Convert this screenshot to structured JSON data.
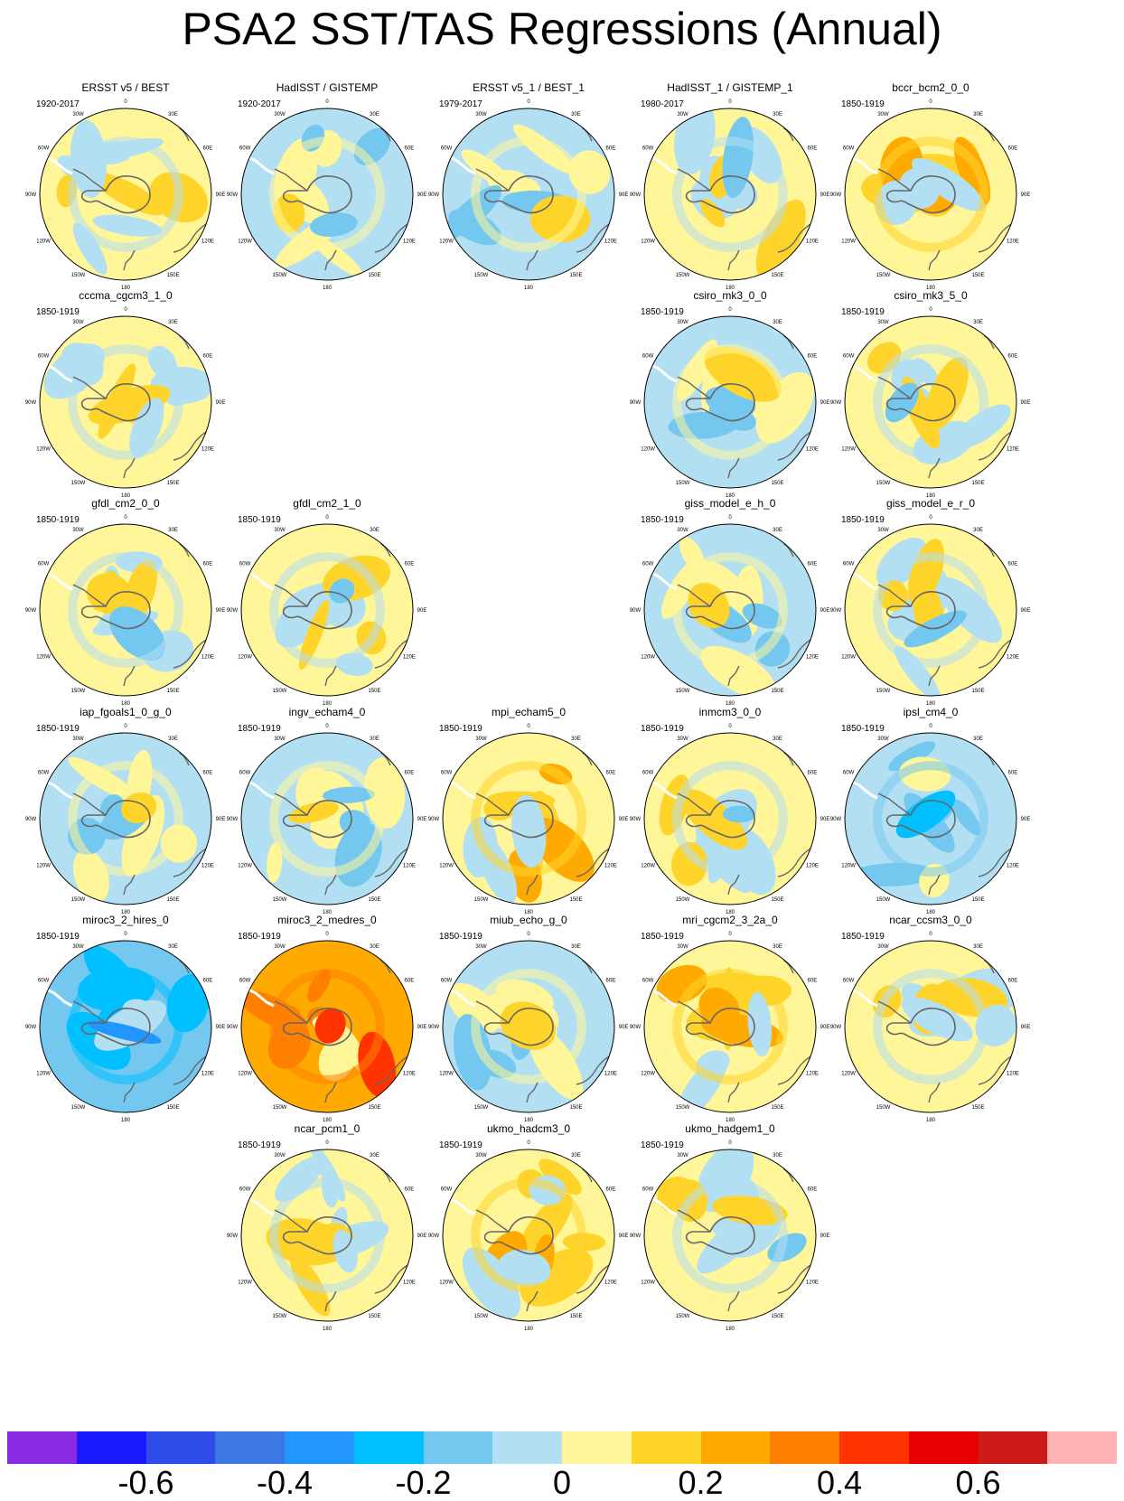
{
  "title": "PSA2 SST/TAS Regressions (Annual)",
  "grid_labels": {
    "top": "0",
    "bottom": "180",
    "upper_left": "30W",
    "upper_right": "30E",
    "left_60": "60W",
    "right_60": "60E",
    "left_90": "90W",
    "right_90": "90E",
    "left_120": "120W",
    "right_120": "120E",
    "lower_left": "150W",
    "lower_right": "150E"
  },
  "panels": [
    {
      "name": "ERSST v5 / BEST",
      "period": "1920-2017",
      "row": 0,
      "col": 0,
      "pattern": "weak-warm"
    },
    {
      "name": "HadISST / GISTEMP",
      "period": "1920-2017",
      "row": 0,
      "col": 1,
      "pattern": "mixed-cool"
    },
    {
      "name": "ERSST v5_1 / BEST_1",
      "period": "1979-2017",
      "row": 0,
      "col": 2,
      "pattern": "mixed-cool"
    },
    {
      "name": "HadISST_1 / GISTEMP_1",
      "period": "1980-2017",
      "row": 0,
      "col": 3,
      "pattern": "mixed"
    },
    {
      "name": "bccr_bcm2_0_0",
      "period": "1850-1919",
      "row": 0,
      "col": 4,
      "pattern": "warm-ring"
    },
    {
      "name": "cccma_cgcm3_1_0",
      "period": "1850-1919",
      "row": 1,
      "col": 0,
      "pattern": "weak-warm"
    },
    {
      "name": "csiro_mk3_0_0",
      "period": "1850-1919",
      "row": 1,
      "col": 3,
      "pattern": "mixed-cool"
    },
    {
      "name": "csiro_mk3_5_0",
      "period": "1850-1919",
      "row": 1,
      "col": 4,
      "pattern": "mixed"
    },
    {
      "name": "gfdl_cm2_0_0",
      "period": "1850-1919",
      "row": 2,
      "col": 0,
      "pattern": "mixed"
    },
    {
      "name": "gfdl_cm2_1_0",
      "period": "1850-1919",
      "row": 2,
      "col": 1,
      "pattern": "mixed"
    },
    {
      "name": "giss_model_e_h_0",
      "period": "1850-1919",
      "row": 2,
      "col": 3,
      "pattern": "mixed-cool"
    },
    {
      "name": "giss_model_e_r_0",
      "period": "1850-1919",
      "row": 2,
      "col": 4,
      "pattern": "mixed"
    },
    {
      "name": "iap_fgoals1_0_g_0",
      "period": "1850-1919",
      "row": 3,
      "col": 0,
      "pattern": "mixed-cool"
    },
    {
      "name": "ingv_echam4_0",
      "period": "1850-1919",
      "row": 3,
      "col": 1,
      "pattern": "mixed-cool"
    },
    {
      "name": "mpi_echam5_0",
      "period": "1850-1919",
      "row": 3,
      "col": 2,
      "pattern": "warm-ring"
    },
    {
      "name": "inmcm3_0_0",
      "period": "1850-1919",
      "row": 3,
      "col": 3,
      "pattern": "mixed"
    },
    {
      "name": "ipsl_cm4_0",
      "period": "1850-1919",
      "row": 3,
      "col": 4,
      "pattern": "cool"
    },
    {
      "name": "miroc3_2_hires_0",
      "period": "1850-1919",
      "row": 4,
      "col": 0,
      "pattern": "strong-cool"
    },
    {
      "name": "miroc3_2_medres_0",
      "period": "1850-1919",
      "row": 4,
      "col": 1,
      "pattern": "strong-warm"
    },
    {
      "name": "miub_echo_g_0",
      "period": "1850-1919",
      "row": 4,
      "col": 2,
      "pattern": "mixed-cool"
    },
    {
      "name": "mri_cgcm2_3_2a_0",
      "period": "1850-1919",
      "row": 4,
      "col": 3,
      "pattern": "warm-ring"
    },
    {
      "name": "ncar_ccsm3_0_0",
      "period": "1850-1919",
      "row": 4,
      "col": 4,
      "pattern": "weak-warm"
    },
    {
      "name": "ncar_pcm1_0",
      "period": "1850-1919",
      "row": 5,
      "col": 1,
      "pattern": "weak-warm"
    },
    {
      "name": "ukmo_hadcm3_0",
      "period": "1850-1919",
      "row": 5,
      "col": 2,
      "pattern": "warm-ring"
    },
    {
      "name": "ukmo_hadgem1_0",
      "period": "1850-1919",
      "row": 5,
      "col": 3,
      "pattern": "mixed"
    }
  ],
  "colorbar": {
    "colors": [
      "#8a2be2",
      "#1a1aff",
      "#2e4de8",
      "#3b78e6",
      "#2196ff",
      "#00c0ff",
      "#74c8f0",
      "#b3dff2",
      "#fff599",
      "#ffd42a",
      "#ffaa00",
      "#ff7f00",
      "#ff3300",
      "#e60000",
      "#cc1a1a",
      "#ffb3b3"
    ],
    "labels": [
      {
        "text": "-0.6",
        "index": 1
      },
      {
        "text": "-0.4",
        "index": 3
      },
      {
        "text": "-0.2",
        "index": 5
      },
      {
        "text": "0",
        "index": 7
      },
      {
        "text": "0.2",
        "index": 9
      },
      {
        "text": "0.4",
        "index": 11
      },
      {
        "text": "0.6",
        "index": 13
      }
    ]
  }
}
